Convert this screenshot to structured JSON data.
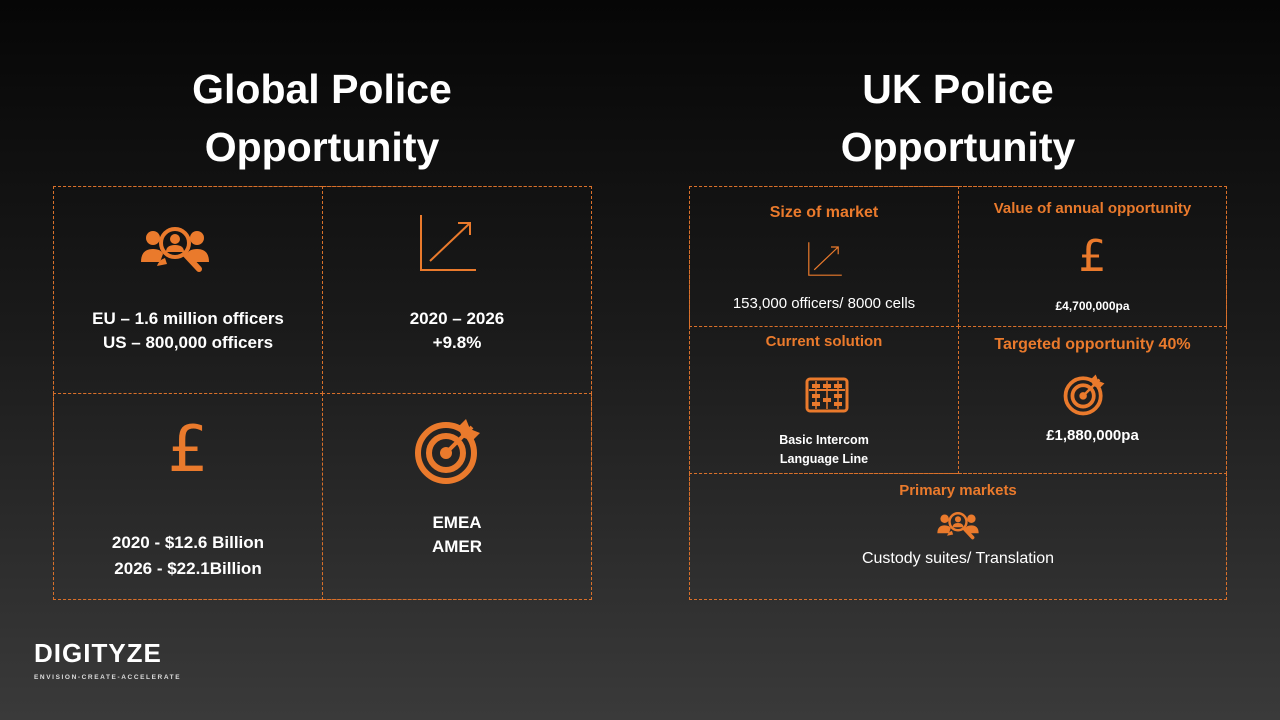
{
  "global": {
    "title_line1": "Global Police",
    "title_line2": "Opportunity",
    "officers_line1": "EU – 1.6 million officers",
    "officers_line2": "US – 800,000 officers",
    "growth_line1": "2020 – 2026",
    "growth_line2": "+9.8%",
    "value_line1": "2020 - $12.6 Billion",
    "value_line2": "2026 - $22.1Billion",
    "regions_line1": "EMEA",
    "regions_line2": "AMER",
    "icons": [
      "people-search-icon",
      "growth-chart-icon",
      "pound-sign-icon",
      "target-icon"
    ]
  },
  "uk": {
    "title_line1": "UK Police",
    "title_line2": "Opportunity",
    "size_title": "Size of market",
    "size_text": "153,000 officers/ 8000 cells",
    "value_title": "Value of annual opportunity",
    "value_text": "£4,700,000pa",
    "current_title": "Current solution",
    "current_line1": "Basic Intercom",
    "current_line2": "Language Line",
    "target_title": "Targeted opportunity  40%",
    "target_text": "£1,880,000pa",
    "primary_title": "Primary markets",
    "primary_text": "Custody suites/ Translation",
    "icons": [
      "growth-chart-icon",
      "pound-sign-icon",
      "abacus-icon",
      "target-icon",
      "people-search-icon"
    ]
  },
  "logo": {
    "name": "DIGITYZE",
    "tagline": "ENVISION-CREATE-ACCELERATE"
  },
  "colors": {
    "accent": "#ea7a2c",
    "border": "#d9702a",
    "text": "#ffffff"
  }
}
